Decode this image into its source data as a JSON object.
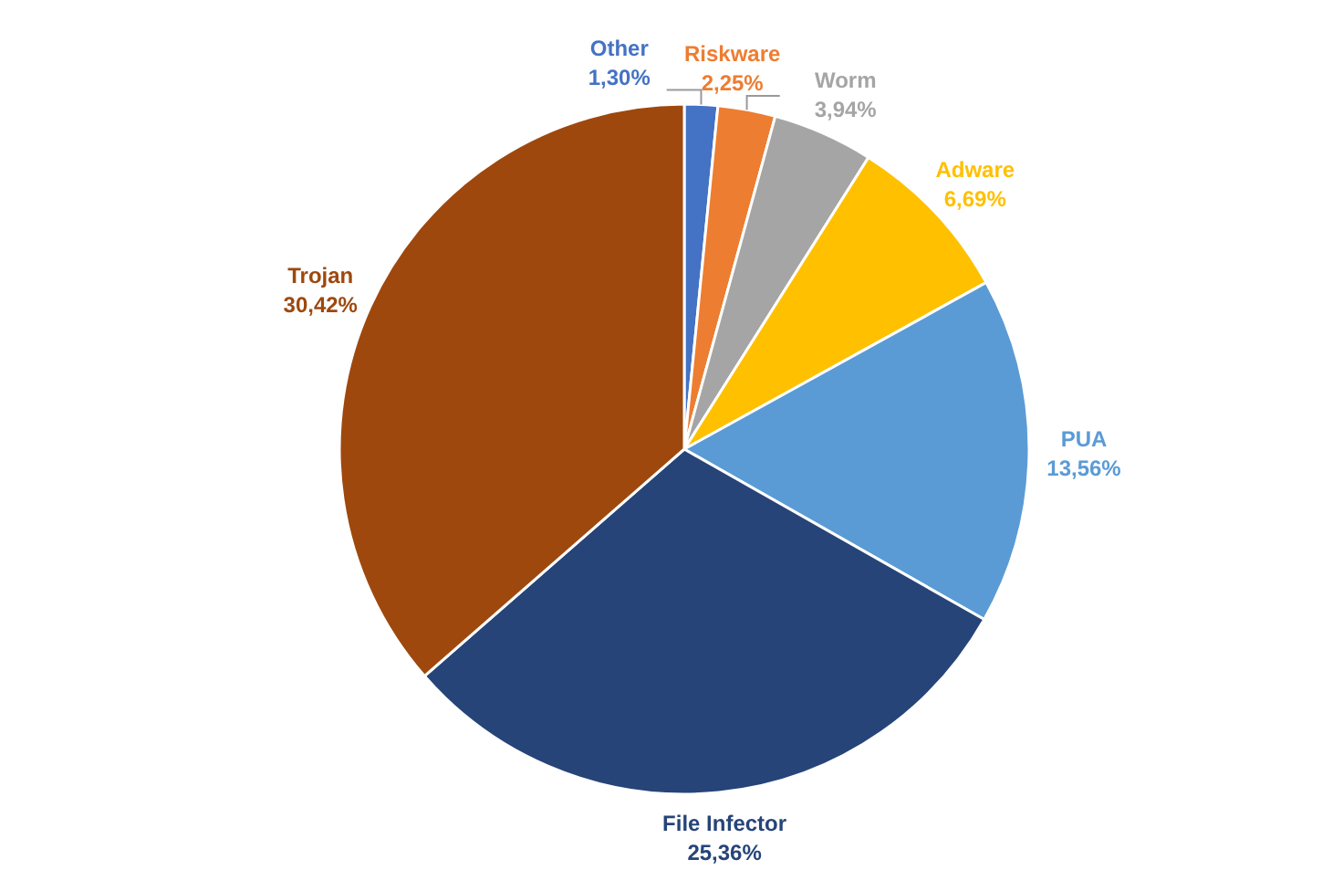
{
  "chart_data": {
    "type": "pie",
    "categories": [
      "Other",
      "Riskware",
      "Worm",
      "Adware",
      "PUA",
      "File Infector",
      "Trojan"
    ],
    "values": [
      1.3,
      2.25,
      3.94,
      6.69,
      13.56,
      25.36,
      30.42
    ],
    "value_labels": [
      "1,30%",
      "2,25%",
      "3,94%",
      "6,69%",
      "13,56%",
      "25,36%",
      "30,42%"
    ],
    "colors": [
      "#4472c4",
      "#ed7d31",
      "#a5a5a5",
      "#ffc000",
      "#5b9bd5",
      "#264478",
      "#9e480e"
    ]
  }
}
